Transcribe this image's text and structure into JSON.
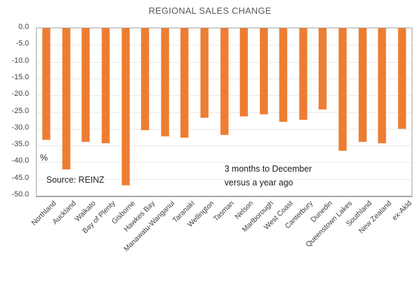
{
  "chart": {
    "title": "REGIONAL SALES CHANGE",
    "percent_label": "%",
    "source_label": "Source: REINZ",
    "note_line1": "3 months to December",
    "note_line2": "versus a year ago"
  },
  "colors": {
    "bar": "#ED7D31",
    "title_text": "#595959",
    "axis_text": "#404040",
    "gridline": "#E9E9E9",
    "plot_border": "#A6A6A6"
  },
  "chart_data": {
    "type": "bar",
    "title": "REGIONAL SALES CHANGE",
    "categories": [
      "Northland",
      "Auckland",
      "Waikato",
      "Bay of Plenty",
      "Gisborne",
      "Hawkes Bay",
      "Manawatu-Wanganui",
      "Taranaki",
      "Wellington",
      "Tasman",
      "Nelson",
      "Marlborough",
      "West Coast",
      "Canterbury",
      "Dunedin",
      "Queenstown Lakes",
      "Southland",
      "New Zealand",
      "ex-Akld"
    ],
    "values": [
      -33.4,
      -42.1,
      -34.0,
      -34.4,
      -46.9,
      -30.5,
      -32.4,
      -32.7,
      -26.7,
      -31.9,
      -26.3,
      -25.8,
      -28.0,
      -27.4,
      -24.2,
      -36.6,
      -34.0,
      -34.4,
      -30.1
    ],
    "xlabel": "",
    "ylabel": "%",
    "ylim": [
      -50,
      0
    ],
    "ytick_step": 5,
    "ytick_labels": [
      "0.0",
      "-5.0",
      "-10.0",
      "-15.0",
      "-20.0",
      "-25.0",
      "-30.0",
      "-35.0",
      "-40.0",
      "-45.0",
      "-50.0"
    ],
    "grid": true,
    "legend": false,
    "bar_color": "#ED7D31",
    "annotations": [
      "%",
      "Source: REINZ",
      "3 months to December versus a year ago"
    ]
  }
}
